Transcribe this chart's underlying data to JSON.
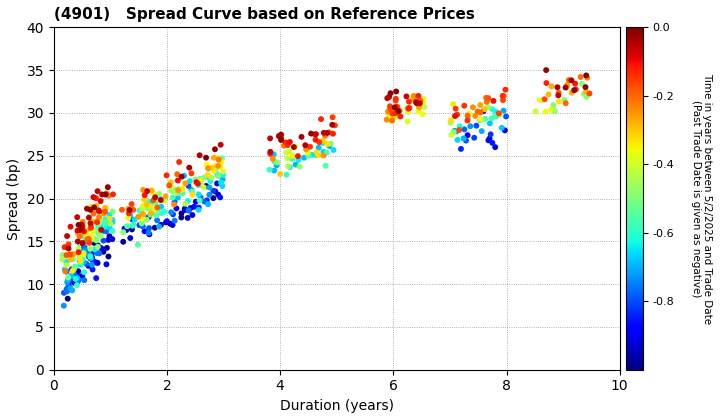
{
  "title": "(4901)   Spread Curve based on Reference Prices",
  "xlabel": "Duration (years)",
  "ylabel": "Spread (bp)",
  "xlim": [
    0,
    10
  ],
  "ylim": [
    0,
    40
  ],
  "xticks": [
    0,
    2,
    4,
    6,
    8,
    10
  ],
  "yticks": [
    0,
    5,
    10,
    15,
    20,
    25,
    30,
    35,
    40
  ],
  "colorbar_label": "Time in years between 5/2/2025 and Trade Date\n(Past Trade Date is given as negative)",
  "cmap": "jet",
  "vmin": -1.0,
  "vmax": 0.0,
  "colorbar_ticks": [
    0.0,
    -0.2,
    -0.4,
    -0.6,
    -0.8
  ],
  "marker_size": 18,
  "background_color": "#ffffff",
  "grid_color": "#999999",
  "grid_style": ":"
}
